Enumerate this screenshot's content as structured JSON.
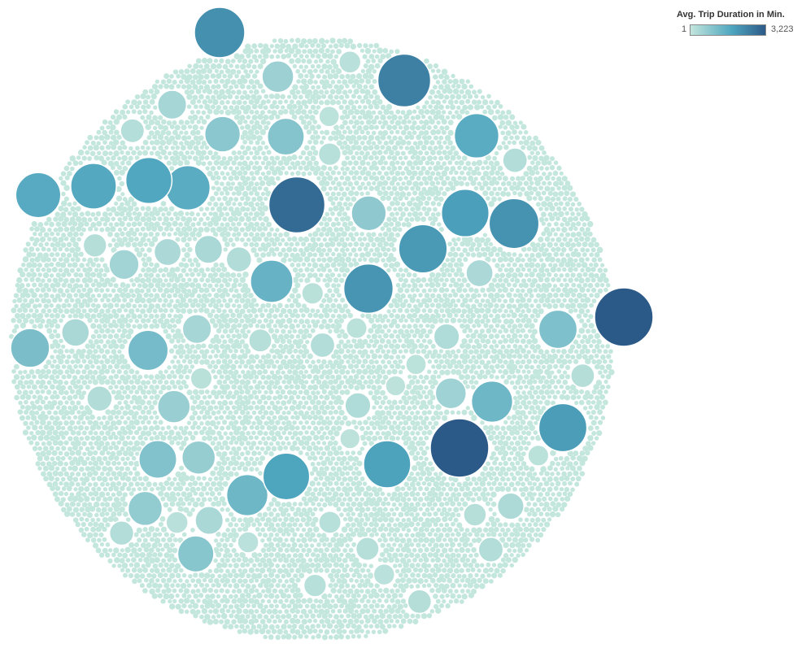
{
  "legend": {
    "title": "Avg. Trip Duration in Min.",
    "min_label": "1",
    "max_label": "3,223"
  },
  "colors": {
    "low": "#c3e6dd",
    "mid": "#4fa6bf",
    "high": "#2c5a88"
  },
  "chart_data": {
    "type": "packed-bubble",
    "measure": "Avg. Trip Duration in Min.",
    "color_range": [
      1,
      3223
    ],
    "background_bubbles": {
      "approx_count": 6000,
      "value": 1
    },
    "bubbles": [
      {
        "value": 3223
      },
      {
        "value": 3223
      },
      {
        "value": 2900
      },
      {
        "value": 2500
      },
      {
        "value": 2200
      },
      {
        "value": 2150
      },
      {
        "value": 2100
      },
      {
        "value": 2000
      },
      {
        "value": 1950
      },
      {
        "value": 1900
      },
      {
        "value": 1850
      },
      {
        "value": 1800
      },
      {
        "value": 1750
      },
      {
        "value": 1700
      },
      {
        "value": 1650
      },
      {
        "value": 1600
      },
      {
        "value": 1600
      },
      {
        "value": 1400
      },
      {
        "value": 1300
      },
      {
        "value": 1300
      },
      {
        "value": 1200
      },
      {
        "value": 1100
      },
      {
        "value": 1050
      },
      {
        "value": 1000
      },
      {
        "value": 950
      },
      {
        "value": 900
      },
      {
        "value": 850
      },
      {
        "value": 800
      },
      {
        "value": 750
      },
      {
        "value": 700
      },
      {
        "value": 650
      },
      {
        "value": 600
      },
      {
        "value": 550
      },
      {
        "value": 500
      },
      {
        "value": 450
      },
      {
        "value": 450
      },
      {
        "value": 400
      },
      {
        "value": 400
      },
      {
        "value": 380
      },
      {
        "value": 350
      },
      {
        "value": 350
      },
      {
        "value": 330
      },
      {
        "value": 300
      },
      {
        "value": 300
      },
      {
        "value": 280
      },
      {
        "value": 280
      },
      {
        "value": 260
      },
      {
        "value": 250
      },
      {
        "value": 250
      },
      {
        "value": 240
      },
      {
        "value": 230
      },
      {
        "value": 220
      },
      {
        "value": 220
      },
      {
        "value": 210
      },
      {
        "value": 200
      },
      {
        "value": 200
      },
      {
        "value": 190
      },
      {
        "value": 180
      },
      {
        "value": 180
      },
      {
        "value": 170
      },
      {
        "value": 160
      },
      {
        "value": 160
      },
      {
        "value": 150
      },
      {
        "value": 150
      },
      {
        "value": 140
      },
      {
        "value": 140
      },
      {
        "value": 130
      },
      {
        "value": 130
      },
      {
        "value": 120
      },
      {
        "value": 120
      },
      {
        "value": 110
      },
      {
        "value": 110
      }
    ]
  }
}
